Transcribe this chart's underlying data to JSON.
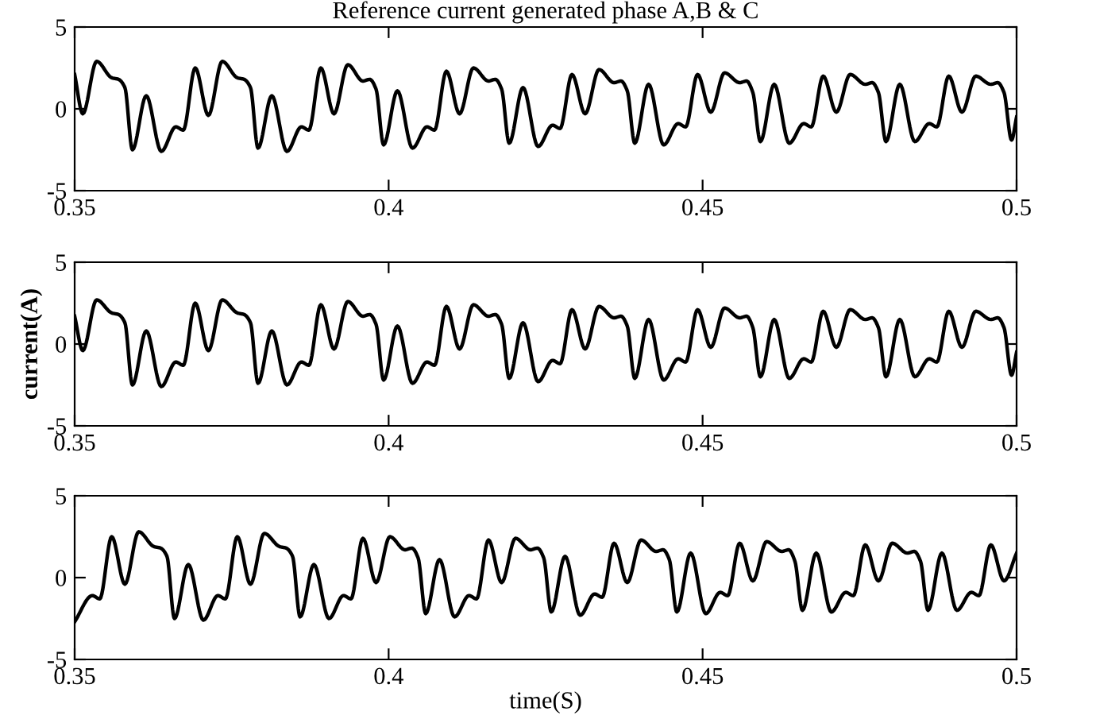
{
  "chart_data": [
    {
      "type": "line",
      "title": "Reference current generated phase A,B & C",
      "xlim": [
        0.35,
        0.5
      ],
      "xticks": [
        0.35,
        0.4,
        0.45,
        0.5
      ],
      "ylim": [
        -5,
        5
      ],
      "yticks": [
        -5,
        0,
        5
      ],
      "grid": false,
      "series": [
        {
          "color": "#000000",
          "x": [
            0.35,
            0.3513,
            0.3535,
            0.3559,
            0.357,
            0.358,
            0.3592,
            0.3614,
            0.3638,
            0.3661,
            0.3673,
            0.3692,
            0.3713,
            0.3735,
            0.3759,
            0.377,
            0.378,
            0.3792,
            0.3814,
            0.3838,
            0.3861,
            0.3873,
            0.3892,
            0.3913,
            0.3935,
            0.3959,
            0.397,
            0.398,
            0.3992,
            0.4014,
            0.4038,
            0.4061,
            0.4073,
            0.4092,
            0.4113,
            0.4135,
            0.4159,
            0.417,
            0.418,
            0.4192,
            0.4214,
            0.4238,
            0.4261,
            0.4273,
            0.4292,
            0.4313,
            0.4335,
            0.4359,
            0.437,
            0.438,
            0.4392,
            0.4414,
            0.4438,
            0.4461,
            0.4473,
            0.4492,
            0.4513,
            0.4535,
            0.4559,
            0.457,
            0.458,
            0.4592,
            0.4614,
            0.4638,
            0.4661,
            0.4673,
            0.4692,
            0.4713,
            0.4735,
            0.4759,
            0.477,
            0.478,
            0.4792,
            0.4814,
            0.4838,
            0.4861,
            0.4873,
            0.4892,
            0.4913,
            0.4935,
            0.4959,
            0.497,
            0.498,
            0.4992,
            0.5
          ],
          "values": [
            2.1,
            -0.3,
            2.9,
            1.9,
            1.8,
            1.3,
            -2.5,
            0.8,
            -2.6,
            -1.1,
            -1.3,
            2.5,
            -0.4,
            2.9,
            1.9,
            1.8,
            1.3,
            -2.4,
            0.8,
            -2.6,
            -1.1,
            -1.3,
            2.5,
            -0.3,
            2.7,
            1.7,
            1.8,
            1.2,
            -2.2,
            1.1,
            -2.4,
            -1.1,
            -1.3,
            2.3,
            -0.3,
            2.5,
            1.7,
            1.8,
            1.2,
            -2.1,
            1.3,
            -2.3,
            -1.0,
            -1.2,
            2.1,
            -0.3,
            2.4,
            1.6,
            1.7,
            1.1,
            -2.1,
            1.5,
            -2.2,
            -0.9,
            -1.1,
            2.1,
            -0.2,
            2.2,
            1.6,
            1.7,
            1.0,
            -2.0,
            1.5,
            -2.1,
            -0.9,
            -1.1,
            2.0,
            -0.2,
            2.1,
            1.5,
            1.6,
            1.0,
            -2.0,
            1.5,
            -2.0,
            -0.9,
            -1.1,
            2.0,
            -0.2,
            2.0,
            1.5,
            1.6,
            1.0,
            -1.9,
            -0.5
          ]
        }
      ]
    },
    {
      "type": "line",
      "ylabel": "current(A)",
      "xlim": [
        0.35,
        0.5
      ],
      "xticks": [
        0.35,
        0.4,
        0.45,
        0.5
      ],
      "ylim": [
        -5,
        5
      ],
      "yticks": [
        -5,
        0,
        5
      ],
      "grid": false,
      "series": [
        {
          "color": "#000000",
          "x": [
            0.35,
            0.3513,
            0.3535,
            0.3559,
            0.357,
            0.358,
            0.3592,
            0.3614,
            0.3638,
            0.3661,
            0.3673,
            0.3692,
            0.3713,
            0.3735,
            0.3759,
            0.377,
            0.378,
            0.3792,
            0.3814,
            0.3838,
            0.3861,
            0.3873,
            0.3892,
            0.3913,
            0.3935,
            0.3959,
            0.397,
            0.398,
            0.3992,
            0.4014,
            0.4038,
            0.4061,
            0.4073,
            0.4092,
            0.4113,
            0.4135,
            0.4159,
            0.417,
            0.418,
            0.4192,
            0.4214,
            0.4238,
            0.4261,
            0.4273,
            0.4292,
            0.4313,
            0.4335,
            0.4359,
            0.437,
            0.438,
            0.4392,
            0.4414,
            0.4438,
            0.4461,
            0.4473,
            0.4492,
            0.4513,
            0.4535,
            0.4559,
            0.457,
            0.458,
            0.4592,
            0.4614,
            0.4638,
            0.4661,
            0.4673,
            0.4692,
            0.4713,
            0.4735,
            0.4759,
            0.477,
            0.478,
            0.4792,
            0.4814,
            0.4838,
            0.4861,
            0.4873,
            0.4892,
            0.4913,
            0.4935,
            0.4959,
            0.497,
            0.498,
            0.4992,
            0.5
          ],
          "values": [
            1.7,
            -0.4,
            2.7,
            1.9,
            1.8,
            1.3,
            -2.5,
            0.8,
            -2.6,
            -1.1,
            -1.3,
            2.5,
            -0.4,
            2.7,
            1.9,
            1.8,
            1.3,
            -2.4,
            0.8,
            -2.5,
            -1.1,
            -1.3,
            2.4,
            -0.3,
            2.6,
            1.7,
            1.8,
            1.2,
            -2.2,
            1.1,
            -2.4,
            -1.1,
            -1.3,
            2.3,
            -0.3,
            2.4,
            1.7,
            1.8,
            1.2,
            -2.1,
            1.3,
            -2.3,
            -1.0,
            -1.2,
            2.1,
            -0.3,
            2.3,
            1.6,
            1.7,
            1.1,
            -2.1,
            1.5,
            -2.2,
            -0.9,
            -1.1,
            2.1,
            -0.2,
            2.2,
            1.6,
            1.7,
            1.0,
            -2.0,
            1.5,
            -2.1,
            -0.9,
            -1.1,
            2.0,
            -0.2,
            2.1,
            1.5,
            1.6,
            1.0,
            -2.0,
            1.5,
            -2.0,
            -0.9,
            -1.1,
            2.0,
            -0.2,
            2.0,
            1.5,
            1.6,
            1.0,
            -1.9,
            -0.5
          ]
        }
      ]
    },
    {
      "type": "line",
      "xlabel": "time(S)",
      "xlim": [
        0.35,
        0.5
      ],
      "xticks": [
        0.35,
        0.4,
        0.45,
        0.5
      ],
      "ylim": [
        -5,
        5
      ],
      "yticks": [
        -5,
        0,
        5
      ],
      "grid": false,
      "series": [
        {
          "color": "#000000",
          "x": [
            0.35,
            0.3528,
            0.354,
            0.3559,
            0.358,
            0.3602,
            0.3626,
            0.3637,
            0.3647,
            0.3659,
            0.3681,
            0.3705,
            0.3728,
            0.374,
            0.3759,
            0.378,
            0.3802,
            0.3826,
            0.3837,
            0.3847,
            0.3859,
            0.3881,
            0.3905,
            0.3928,
            0.394,
            0.3959,
            0.398,
            0.4002,
            0.4026,
            0.4037,
            0.4047,
            0.4059,
            0.4081,
            0.4105,
            0.4128,
            0.414,
            0.4159,
            0.418,
            0.4202,
            0.4226,
            0.4237,
            0.4247,
            0.4259,
            0.4281,
            0.4305,
            0.4328,
            0.434,
            0.4359,
            0.438,
            0.4402,
            0.4426,
            0.4437,
            0.4447,
            0.4459,
            0.4481,
            0.4505,
            0.4528,
            0.454,
            0.4559,
            0.458,
            0.4602,
            0.4626,
            0.4637,
            0.4647,
            0.4659,
            0.4681,
            0.4705,
            0.4728,
            0.474,
            0.4759,
            0.478,
            0.4802,
            0.4826,
            0.4837,
            0.4847,
            0.4859,
            0.4881,
            0.4905,
            0.4928,
            0.494,
            0.4959,
            0.498,
            0.5
          ],
          "values": [
            -2.7,
            -1.1,
            -1.3,
            2.5,
            -0.4,
            2.8,
            1.9,
            1.8,
            1.3,
            -2.5,
            0.8,
            -2.6,
            -1.1,
            -1.3,
            2.5,
            -0.4,
            2.7,
            1.9,
            1.8,
            1.3,
            -2.4,
            0.8,
            -2.5,
            -1.1,
            -1.3,
            2.4,
            -0.3,
            2.5,
            1.7,
            1.8,
            1.2,
            -2.2,
            1.1,
            -2.4,
            -1.1,
            -1.3,
            2.3,
            -0.3,
            2.4,
            1.7,
            1.8,
            1.2,
            -2.1,
            1.3,
            -2.3,
            -1.0,
            -1.2,
            2.1,
            -0.3,
            2.3,
            1.6,
            1.7,
            1.1,
            -2.1,
            1.5,
            -2.2,
            -0.9,
            -1.1,
            2.1,
            -0.2,
            2.2,
            1.6,
            1.7,
            1.0,
            -2.0,
            1.5,
            -2.1,
            -0.9,
            -1.1,
            2.0,
            -0.2,
            2.1,
            1.5,
            1.6,
            1.0,
            -2.0,
            1.5,
            -2.0,
            -0.9,
            -1.1,
            2.0,
            -0.2,
            1.5
          ]
        }
      ]
    }
  ]
}
